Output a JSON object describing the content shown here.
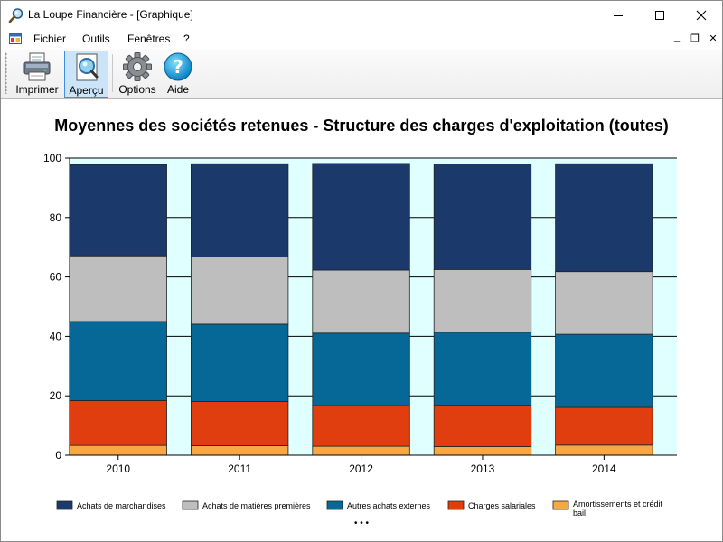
{
  "window": {
    "title": "La Loupe Financière - [Graphique]",
    "controls": {
      "minimize": "—",
      "maximize": "☐",
      "close": "✕"
    }
  },
  "menu": {
    "items": [
      "Fichier",
      "Outils",
      "Fenêtres",
      "?"
    ],
    "mdi": {
      "minimize": "_",
      "restore": "❐",
      "close": "✕"
    }
  },
  "toolbar": {
    "buttons": [
      {
        "label": "Imprimer",
        "icon": "printer-icon"
      },
      {
        "label": "Aperçu",
        "icon": "print-preview-icon",
        "active": true
      },
      {
        "label": "Options",
        "icon": "gear-icon"
      },
      {
        "label": "Aide",
        "icon": "help-icon"
      }
    ]
  },
  "chart_data": {
    "type": "bar",
    "stacked": true,
    "title": "Moyennes des sociétés retenues - Structure des charges d'exploitation (toutes)",
    "categories": [
      "2010",
      "2011",
      "2012",
      "2013",
      "2014"
    ],
    "ylim": [
      0,
      100
    ],
    "yticks": [
      0,
      20,
      40,
      60,
      80,
      100
    ],
    "grid": true,
    "plot_background": "#e0ffff",
    "legend_position": "bottom",
    "series": [
      {
        "name": "Amortissements et crédit bail",
        "color": "#f7a844",
        "values": [
          3.3,
          3.2,
          3.0,
          2.9,
          3.4
        ]
      },
      {
        "name": "Charges salariales",
        "color": "#e03e0f",
        "values": [
          15.1,
          14.9,
          13.7,
          13.9,
          12.7
        ]
      },
      {
        "name": "Autres achats externes",
        "color": "#066896",
        "values": [
          26.6,
          26.0,
          24.4,
          24.6,
          24.6
        ]
      },
      {
        "name": "Achats de matières premières",
        "color": "#bebebe",
        "values": [
          22.1,
          22.6,
          21.2,
          21.1,
          21.1
        ]
      },
      {
        "name": "Achats de marchandises",
        "color": "#1b3a6b",
        "values": [
          30.7,
          31.4,
          35.9,
          35.5,
          36.3
        ]
      }
    ],
    "legend_more": "• • •"
  }
}
